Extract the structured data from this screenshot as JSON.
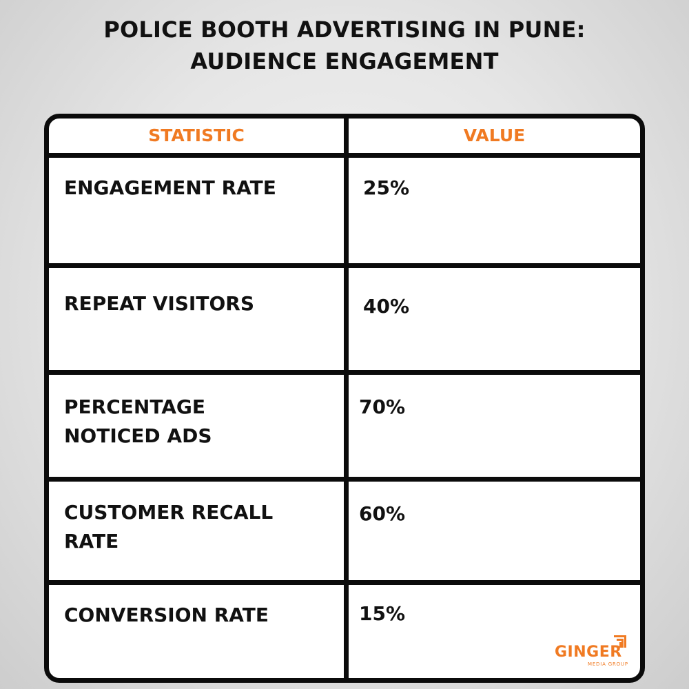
{
  "title": {
    "line1": "POLICE BOOTH ADVERTISING IN PUNE:",
    "line2": "AUDIENCE ENGAGEMENT"
  },
  "table": {
    "headers": [
      "STATISTIC",
      "VALUE"
    ],
    "rows": [
      {
        "statistic": "ENGAGEMENT RATE",
        "value": "25%"
      },
      {
        "statistic": "REPEAT VISITORS",
        "value": "40%"
      },
      {
        "statistic": "PERCENTAGE NOTICED ADS",
        "value": "70%"
      },
      {
        "statistic": "CUSTOMER RECALL RATE",
        "value": "60%"
      },
      {
        "statistic": "CONVERSION RATE",
        "value": "15%"
      }
    ]
  },
  "logo": {
    "word": "GINGER",
    "tagline": "MEDIA GROUP"
  },
  "colors": {
    "accent": "#f07a22",
    "border": "#0b0b0b",
    "text": "#111111"
  }
}
